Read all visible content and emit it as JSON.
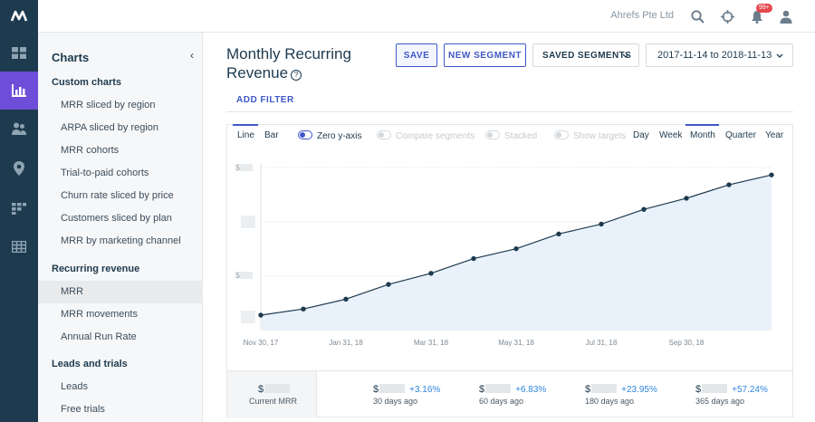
{
  "header": {
    "company": "Ahrefs Pte Ltd",
    "notification_count": "99+",
    "icons": [
      "search-icon",
      "crosshair-icon",
      "bell-icon",
      "user-icon"
    ]
  },
  "rail": {
    "items": [
      "dashboard-icon",
      "charts-icon",
      "customers-icon",
      "map-pin-icon",
      "segments-icon",
      "table-icon"
    ],
    "active_index": 1,
    "active_color": "#6e4ed8"
  },
  "sidebar": {
    "title": "Charts",
    "sections": [
      {
        "title": "Custom charts",
        "items": [
          "MRR sliced by region",
          "ARPA sliced by region",
          "MRR cohorts",
          "Trial-to-paid cohorts",
          "Churn rate sliced by price",
          "Customers sliced by plan",
          "MRR by marketing channel"
        ]
      },
      {
        "title": "Recurring revenue",
        "items": [
          "MRR",
          "MRR movements",
          "Annual Run Rate"
        ]
      },
      {
        "title": "Leads and trials",
        "items": [
          "Leads",
          "Free trials"
        ]
      }
    ],
    "active_item": "MRR"
  },
  "main": {
    "title_line1": "Monthly Recurring",
    "title_line2": "Revenue",
    "help": "?",
    "save_label": "SAVE",
    "new_segment_label": "NEW SEGMENT",
    "saved_segments_label": "SAVED SEGMENTS",
    "date_range": "2017-11-14 to 2018-11-13",
    "add_filter_label": "ADD FILTER"
  },
  "controls": {
    "line": "Line",
    "bar": "Bar",
    "zero_y": "Zero y-axis",
    "compare": "Compare segments",
    "stacked": "Stacked",
    "targets": "Show targets",
    "day": "Day",
    "week": "Week",
    "month": "Month",
    "quarter": "Quarter",
    "year": "Year",
    "selected_type": "Line",
    "selected_interval": "Month"
  },
  "chart_data": {
    "type": "area",
    "x": [
      "Nov 30, 17",
      "Dec 31, 17",
      "Jan 31, 18",
      "Feb 28, 18",
      "Mar 31, 18",
      "Apr 30, 18",
      "May 31, 18",
      "Jun 30, 18",
      "Jul 31, 18",
      "Aug 31, 18",
      "Sep 30, 18",
      "Oct 31, 18",
      "Nov 13, 18"
    ],
    "x_tick_labels": [
      "Nov 30, 17",
      "Jan 31, 18",
      "Mar 31, 18",
      "May 31, 18",
      "Jul 31, 18",
      "Sep 30, 18"
    ],
    "values_relative": [
      0.0,
      0.05,
      0.13,
      0.25,
      0.34,
      0.46,
      0.54,
      0.66,
      0.74,
      0.86,
      0.95,
      1.06,
      1.14
    ],
    "y_labels_visible": [
      "$",
      "$"
    ],
    "grid": true,
    "line_color": "#1d3a4f",
    "fill_color": "#e9f2fb"
  },
  "summary": {
    "current": {
      "prefix": "$",
      "label": "Current MRR"
    },
    "stats": [
      {
        "prefix": "$",
        "change": "+3.16%",
        "label": "30 days ago"
      },
      {
        "prefix": "$",
        "change": "+6.83%",
        "label": "60 days ago"
      },
      {
        "prefix": "$",
        "change": "+23.95%",
        "label": "180 days ago"
      },
      {
        "prefix": "$",
        "change": "+57.24%",
        "label": "365 days ago"
      }
    ]
  }
}
